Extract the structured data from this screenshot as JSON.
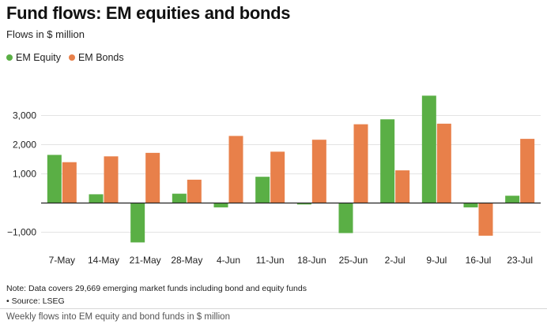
{
  "header": {
    "title": "Fund flows: EM equities and bonds",
    "subtitle": "Flows in $ million"
  },
  "colors": {
    "equity": "#5aaf45",
    "bonds": "#e8804a",
    "gridline": "#e3e3e3",
    "zero_line": "#222222"
  },
  "footer": {
    "note": "Note: Data covers 29,669 emerging market funds including bond and equity funds",
    "source": "• Source: LSEG",
    "caption": "Weekly flows into EM equity and bond funds in $ million"
  },
  "chart_data": {
    "type": "bar",
    "title": "Fund flows: EM equities and bonds",
    "subtitle": "Flows in $ million",
    "categories": [
      "7-May",
      "14-May",
      "21-May",
      "28-May",
      "4-Jun",
      "11-Jun",
      "18-Jun",
      "25-Jun",
      "2-Jul",
      "9-Jul",
      "16-Jul",
      "23-Jul"
    ],
    "series": [
      {
        "name": "EM Equity",
        "color": "#5aaf45",
        "values": [
          1650,
          300,
          -1350,
          320,
          -150,
          900,
          -50,
          -1030,
          2870,
          3680,
          -150,
          250
        ]
      },
      {
        "name": "EM Bonds",
        "color": "#e8804a",
        "values": [
          1400,
          1600,
          1720,
          800,
          2300,
          1760,
          2170,
          2700,
          1120,
          2720,
          -1120,
          2200
        ]
      }
    ],
    "yticks": [
      -1000,
      1000,
      2000,
      3000
    ],
    "ytick_labels": [
      "−1,000",
      "1,000",
      "2,000",
      "3,000"
    ],
    "ylim": [
      -1500,
      3800
    ],
    "grid": true,
    "legend_position": "top-left",
    "xlabel": "",
    "ylabel": ""
  }
}
